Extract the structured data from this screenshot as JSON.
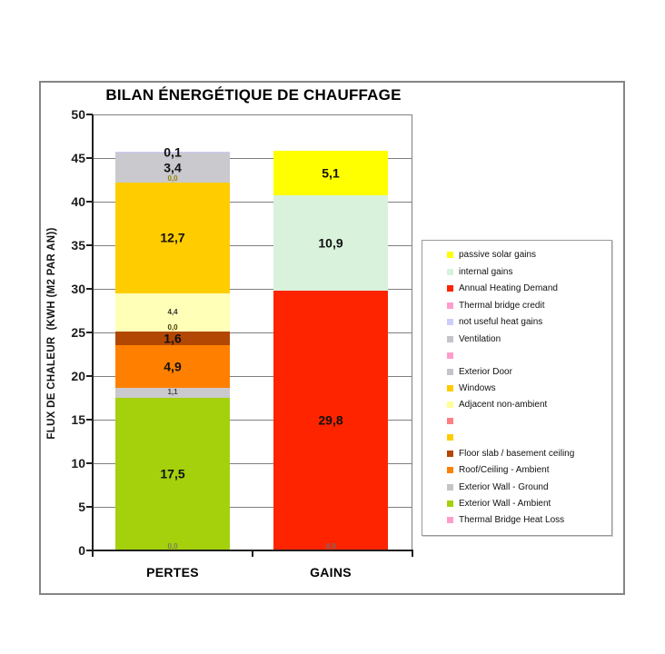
{
  "chart_data": {
    "type": "bar",
    "stacked": true,
    "title": "BILAN ÉNERGÉTIQUE DE CHAUFFAGE",
    "ylabel": "FLUX DE CHALEUR  (KWH (M2 PAR AN))",
    "ylim": [
      0,
      50
    ],
    "ytick_step": 5,
    "ytick_labels": [
      "50",
      "45",
      "40",
      "35",
      "30",
      "25",
      "20",
      "15",
      "10",
      "5",
      "0"
    ],
    "grid": "horizontal",
    "legend_position": "right",
    "categories": [
      "PERTES",
      "GAINS"
    ],
    "bars": [
      {
        "category": "PERTES",
        "segments": [
          {
            "name": "Thermal Bridge Heat Loss",
            "value": 0.0,
            "label": "0,0",
            "color": "#FF9ECE",
            "label_size": "sm",
            "label_color": "#7d7d5a"
          },
          {
            "name": "Exterior Wall - Ambient",
            "value": 17.5,
            "label": "17,5",
            "color": "#A4D10C",
            "label_size": "lg",
            "label_color": "#111111"
          },
          {
            "name": "Exterior Wall - Ground",
            "value": 1.1,
            "label": "1,1",
            "color": "#C9C9CE",
            "label_size": "sm",
            "label_color": "#454545"
          },
          {
            "name": "Roof/Ceiling - Ambient",
            "value": 4.9,
            "label": "4,9",
            "color": "#FF8000",
            "label_size": "lg",
            "label_color": "#111111"
          },
          {
            "name": "Floor slab / basement ceiling",
            "value": 1.6,
            "label": "1,6",
            "color": "#B24703",
            "label_size": "lg",
            "label_color": "#111111"
          },
          {
            "name": "",
            "value": 0.0,
            "label": "0,0",
            "color": "#FFCC00",
            "label_size": "sm",
            "label_color": "#4a3a00"
          },
          {
            "name": "Adjacent non-ambient",
            "value": 4.4,
            "label": "4,4",
            "color": "#FFFFB8",
            "label_size": "sm",
            "label_color": "#333333"
          },
          {
            "name": "Windows",
            "value": 12.7,
            "label": "12,7",
            "color": "#FFCC00",
            "label_size": "lg",
            "label_color": "#111111"
          },
          {
            "name": "Exterior Door",
            "value": 0.0,
            "label": "0,0",
            "color": "#C9C9CE",
            "label_size": "sm",
            "label_color": "#9a8200"
          },
          {
            "name": "Ventilation",
            "value": 3.4,
            "label": "3,4",
            "color": "#C9C9CE",
            "label_size": "lg",
            "label_color": "#111111"
          },
          {
            "name": "not useful heat gains",
            "value": 0.1,
            "label": "0,1",
            "color": "#CCCCFF",
            "label_size": "lg",
            "label_color": "#111111"
          }
        ]
      },
      {
        "category": "GAINS",
        "segments": [
          {
            "name": "Thermal bridge credit",
            "value": 0.0,
            "label": "0,0",
            "color": "#FF9ECE",
            "label_size": "sm",
            "label_color": "#6e6e6e"
          },
          {
            "name": "Annual Heating Demand",
            "value": 29.8,
            "label": "29,8",
            "color": "#FF2400",
            "label_size": "lg",
            "label_color": "#111111"
          },
          {
            "name": "internal gains",
            "value": 10.9,
            "label": "10,9",
            "color": "#D9F2DC",
            "label_size": "lg",
            "label_color": "#111111"
          },
          {
            "name": "passive solar gains",
            "value": 5.1,
            "label": "5,1",
            "color": "#FFFF00",
            "label_size": "lg",
            "label_color": "#111111"
          }
        ]
      }
    ],
    "legend": [
      {
        "label": "passive solar gains",
        "color": "#FFFF00"
      },
      {
        "label": "internal gains",
        "color": "#D9F2DC"
      },
      {
        "label": "Annual Heating Demand",
        "color": "#FF2400"
      },
      {
        "label": "Thermal bridge credit",
        "color": "#FF9ECE"
      },
      {
        "label": "not useful heat gains",
        "color": "#CCCCFF"
      },
      {
        "label": "Ventilation",
        "color": "#C4C4C9"
      },
      {
        "label": "",
        "color": "#FF9ECE"
      },
      {
        "label": "Exterior Door",
        "color": "#C4C4C9"
      },
      {
        "label": "Windows",
        "color": "#FFCC00"
      },
      {
        "label": "Adjacent non-ambient",
        "color": "#FFFF99"
      },
      {
        "label": "",
        "color": "#FF8080"
      },
      {
        "label": "",
        "color": "#FFCC00"
      },
      {
        "label": "Floor slab / basement ceiling",
        "color": "#B24703"
      },
      {
        "label": "Roof/Ceiling - Ambient",
        "color": "#FF8000"
      },
      {
        "label": "Exterior Wall - Ground",
        "color": "#C4C4C9"
      },
      {
        "label": "Exterior Wall - Ambient",
        "color": "#A4D10C"
      },
      {
        "label": "Thermal Bridge Heat Loss",
        "color": "#FF9ECE"
      }
    ]
  }
}
